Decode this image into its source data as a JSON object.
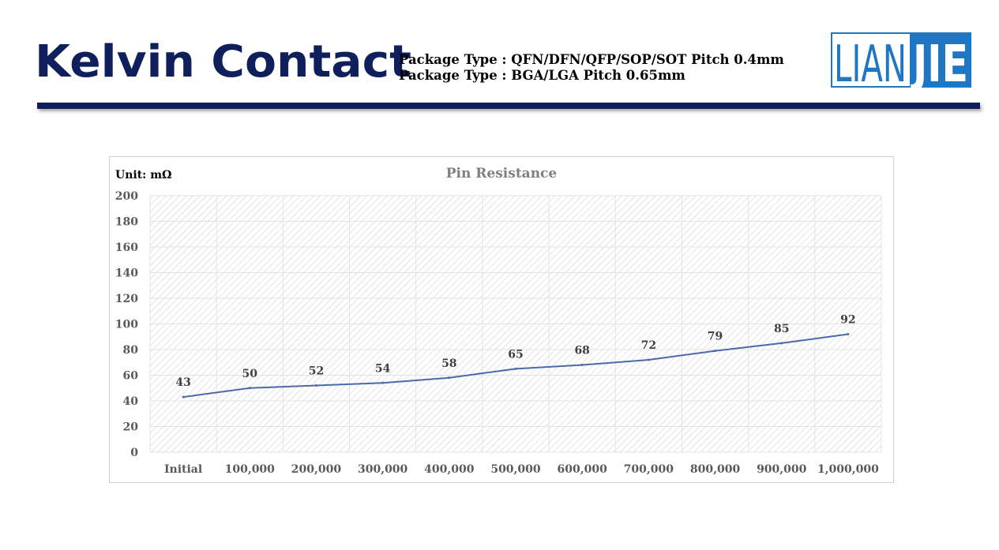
{
  "header": {
    "title": "Kelvin Contact",
    "package_lines": [
      "Package Type : QFN/DFN/QFP/SOP/SOT Pitch 0.4mm",
      "Package Type : BGA/LGA Pitch 0.65mm"
    ],
    "logo": {
      "part1": "LIAN",
      "part2": "JIE"
    }
  },
  "colors": {
    "brand_navy": "#0e1f5b",
    "logo_blue": "#1f77c3",
    "series_line": "#4a6aab"
  },
  "chart_data": {
    "type": "line",
    "title": "Pin Resistance",
    "unit_label": "Unit: mΩ",
    "categories": [
      "Initial",
      "100,000",
      "200,000",
      "300,000",
      "400,000",
      "500,000",
      "600,000",
      "700,000",
      "800,000",
      "900,000",
      "1,000,000"
    ],
    "series": [
      {
        "values": [
          43,
          50,
          52,
          54,
          58,
          65,
          68,
          72,
          79,
          85,
          92
        ]
      }
    ],
    "ylim": [
      0,
      200
    ],
    "yticks": [
      0,
      20,
      40,
      60,
      80,
      100,
      120,
      140,
      160,
      180,
      200
    ],
    "grid": true,
    "data_labels": true
  }
}
